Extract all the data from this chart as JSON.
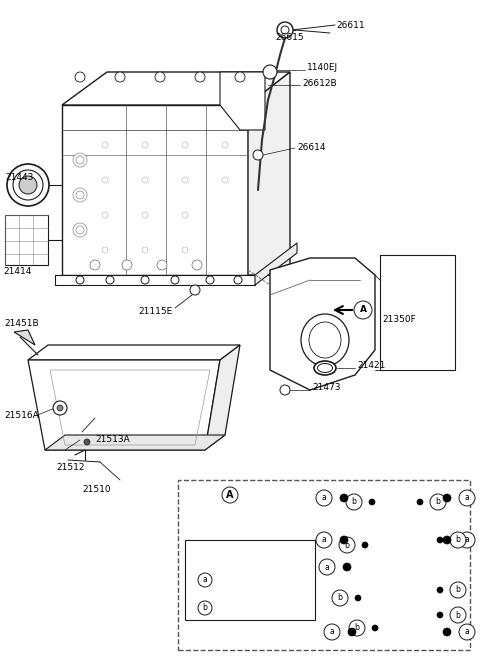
{
  "bg_color": "#ffffff",
  "lc": "#1a1a1a",
  "figsize": [
    4.8,
    6.57
  ],
  "dpi": 100,
  "xlim": [
    0,
    480
  ],
  "ylim": [
    0,
    657
  ]
}
